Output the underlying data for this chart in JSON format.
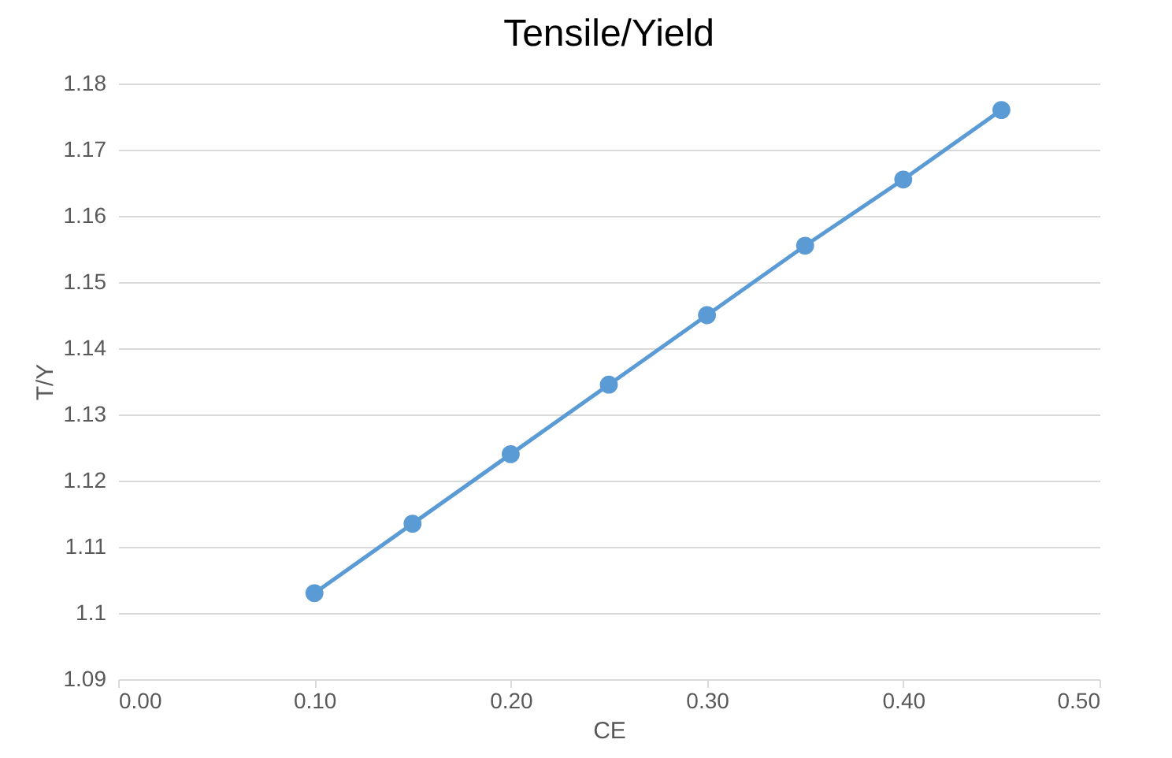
{
  "chart_data": {
    "type": "line",
    "title": "Tensile/Yield",
    "xlabel": "CE",
    "ylabel": "T/Y",
    "x": [
      0.1,
      0.15,
      0.2,
      0.25,
      0.3,
      0.35,
      0.4,
      0.45
    ],
    "series": [
      {
        "color": "#5b9bd5",
        "values": [
          1.103,
          1.1135,
          1.124,
          1.1345,
          1.145,
          1.1555,
          1.1655,
          1.176
        ]
      }
    ],
    "xlim": [
      0,
      0.5
    ],
    "xticks": [
      {
        "value": 0,
        "label": "0.00"
      },
      {
        "value": 0.1,
        "label": "0.10"
      },
      {
        "value": 0.2,
        "label": "0.20"
      },
      {
        "value": 0.3,
        "label": "0.30"
      },
      {
        "value": 0.4,
        "label": "0.40"
      },
      {
        "value": 0.5,
        "label": "0.50"
      }
    ],
    "ylim": [
      1.09,
      1.18
    ],
    "yticks": [
      1.09,
      1.1,
      1.11,
      1.12,
      1.13,
      1.14,
      1.15,
      1.16,
      1.17,
      1.18
    ],
    "grid": "y",
    "marker": "circle",
    "line_style": "solid"
  }
}
